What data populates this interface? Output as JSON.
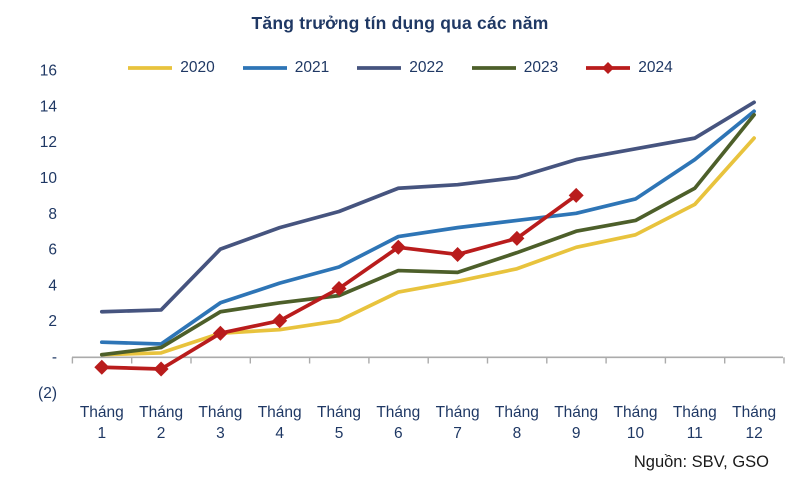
{
  "chart_data": {
    "type": "line",
    "title": "Tăng trưởng tín dụng qua các năm",
    "source_note": "Nguồn: SBV, GSO",
    "categories": [
      "Tháng 1",
      "Tháng 2",
      "Tháng 3",
      "Tháng 4",
      "Tháng 5",
      "Tháng 6",
      "Tháng 7",
      "Tháng 8",
      "Tháng 9",
      "Tháng 10",
      "Tháng 11",
      "Tháng 12"
    ],
    "y_axis": {
      "min": -2,
      "max": 16,
      "tick_step": 2,
      "tick_values": [
        16,
        14,
        12,
        10,
        8,
        6,
        4,
        2,
        0,
        -2
      ],
      "tick_labels": [
        "16",
        "14",
        "12",
        "10",
        "8",
        "6",
        "4",
        "2",
        "-",
        "(2)"
      ]
    },
    "grid": false,
    "legend_position": "top",
    "text_color": "#1F3864",
    "axis_color": "#ABABAB",
    "series": [
      {
        "name": "2020",
        "color": "#E8C33D",
        "marker": "none",
        "values": [
          0.1,
          0.2,
          1.3,
          1.5,
          2.0,
          3.6,
          4.2,
          4.9,
          6.1,
          6.8,
          8.5,
          12.2
        ]
      },
      {
        "name": "2021",
        "color": "#2E75B6",
        "marker": "none",
        "values": [
          0.8,
          0.7,
          3.0,
          4.1,
          5.0,
          6.7,
          7.2,
          7.6,
          8.0,
          8.8,
          11.0,
          13.7
        ]
      },
      {
        "name": "2022",
        "color": "#46547F",
        "marker": "none",
        "values": [
          2.5,
          2.6,
          6.0,
          7.2,
          8.1,
          9.4,
          9.6,
          10.0,
          11.0,
          11.6,
          12.2,
          14.2
        ]
      },
      {
        "name": "2023",
        "color": "#4D5F2A",
        "marker": "none",
        "values": [
          0.1,
          0.5,
          2.5,
          3.0,
          3.4,
          4.8,
          4.7,
          5.8,
          7.0,
          7.6,
          9.4,
          13.5
        ]
      },
      {
        "name": "2024",
        "color": "#B91C1C",
        "marker": "diamond",
        "values": [
          -0.6,
          -0.7,
          1.3,
          2.0,
          3.8,
          6.1,
          5.7,
          6.6,
          9.0
        ]
      }
    ]
  }
}
